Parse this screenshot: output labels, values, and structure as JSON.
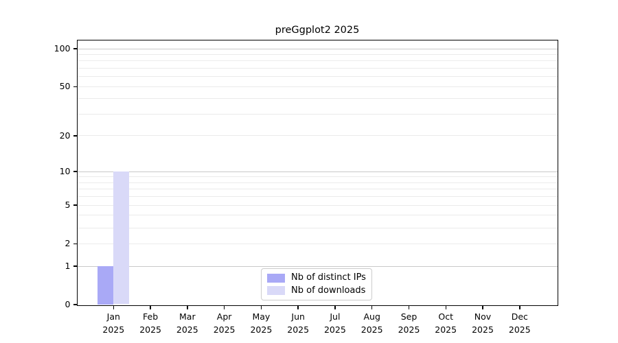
{
  "chart_data": {
    "type": "bar",
    "title": "preGgplot2 2025",
    "categories": [
      "Jan",
      "Feb",
      "Mar",
      "Apr",
      "May",
      "Jun",
      "Jul",
      "Aug",
      "Sep",
      "Oct",
      "Nov",
      "Dec"
    ],
    "x_year": "2025",
    "series": [
      {
        "name": "Nb of distinct IPs",
        "color": "#a9a9f6",
        "values": [
          1,
          0,
          0,
          0,
          0,
          0,
          0,
          0,
          0,
          0,
          0,
          0
        ]
      },
      {
        "name": "Nb of downloads",
        "color": "#d9d9f8",
        "values": [
          10,
          0,
          0,
          0,
          0,
          0,
          0,
          0,
          0,
          0,
          0,
          0
        ]
      }
    ],
    "y_scale": "log1p",
    "ylim": [
      0,
      100
    ],
    "y_ticks": [
      0,
      1,
      2,
      5,
      10,
      20,
      50,
      100
    ],
    "grid_major": [
      1,
      10,
      100
    ],
    "grid_minor": [
      2,
      3,
      4,
      5,
      6,
      7,
      8,
      9,
      20,
      30,
      40,
      50,
      60,
      70,
      80,
      90
    ],
    "grid": true,
    "legend_position": "lower center inside plot",
    "colors": {
      "grid_major": "#c9c9c9",
      "grid_minor": "#ebebeb",
      "axis": "#000000",
      "legend_border": "#cccccc",
      "background": "#ffffff"
    }
  },
  "legend": {
    "items": [
      "Nb of distinct IPs",
      "Nb of downloads"
    ]
  }
}
